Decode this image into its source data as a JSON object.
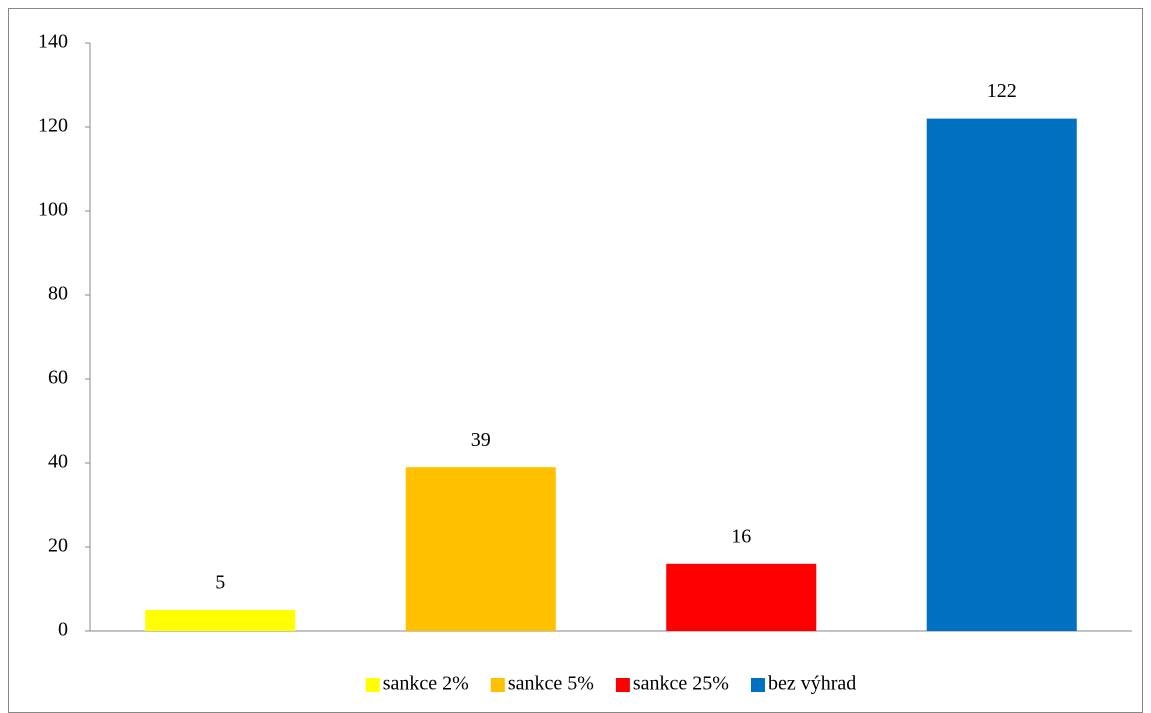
{
  "chart_data": {
    "type": "bar",
    "series": [
      {
        "name": "sankce 2%",
        "color": "#ffff00",
        "values": [
          5
        ]
      },
      {
        "name": "sankce 5%",
        "color": "#ffc000",
        "values": [
          39
        ]
      },
      {
        "name": "sankce 25%",
        "color": "#ff0000",
        "values": [
          16
        ]
      },
      {
        "name": "bez výhrad",
        "color": "#0070c0",
        "values": [
          122
        ]
      }
    ],
    "ylim": [
      0,
      140
    ],
    "yticks": [
      0,
      20,
      40,
      60,
      80,
      100,
      120,
      140
    ],
    "grid": false,
    "legend": "bottom",
    "data_labels": true
  }
}
